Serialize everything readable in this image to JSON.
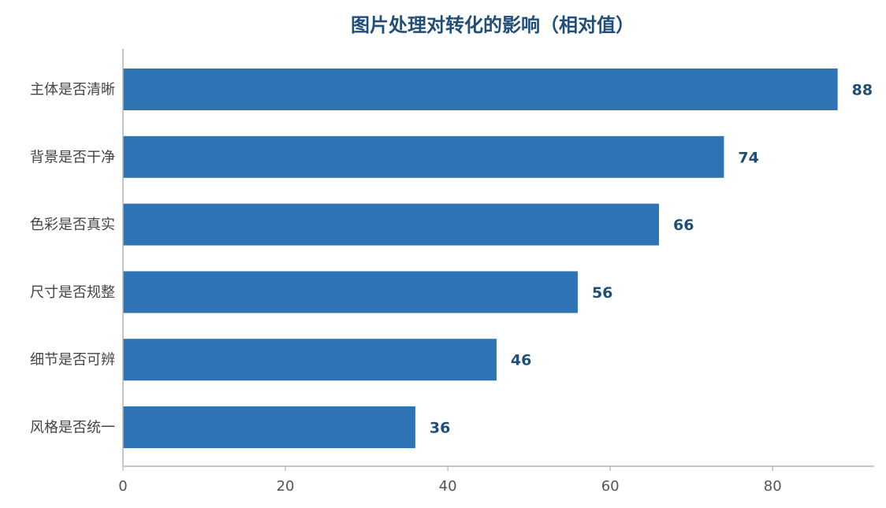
{
  "chart_data": {
    "type": "bar",
    "orientation": "horizontal",
    "title": "图片处理对转化的影响（相对值）",
    "categories": [
      "主体是否清晰",
      "背景是否干净",
      "色彩是否真实",
      "尺寸是否规整",
      "细节是否可辨",
      "风格是否统一"
    ],
    "values": [
      88,
      74,
      66,
      56,
      46,
      36
    ],
    "xlim": [
      0,
      92.5
    ],
    "xticks": [
      0,
      20,
      40,
      60,
      80
    ],
    "xlabel": "",
    "ylabel": "",
    "grid": false,
    "legend": "none",
    "data_labels": true
  },
  "colors": {
    "bar": "#2e74b5",
    "title": "#1f4e79",
    "value_label": "#1f4e79",
    "axis": "#b3b3b3"
  }
}
